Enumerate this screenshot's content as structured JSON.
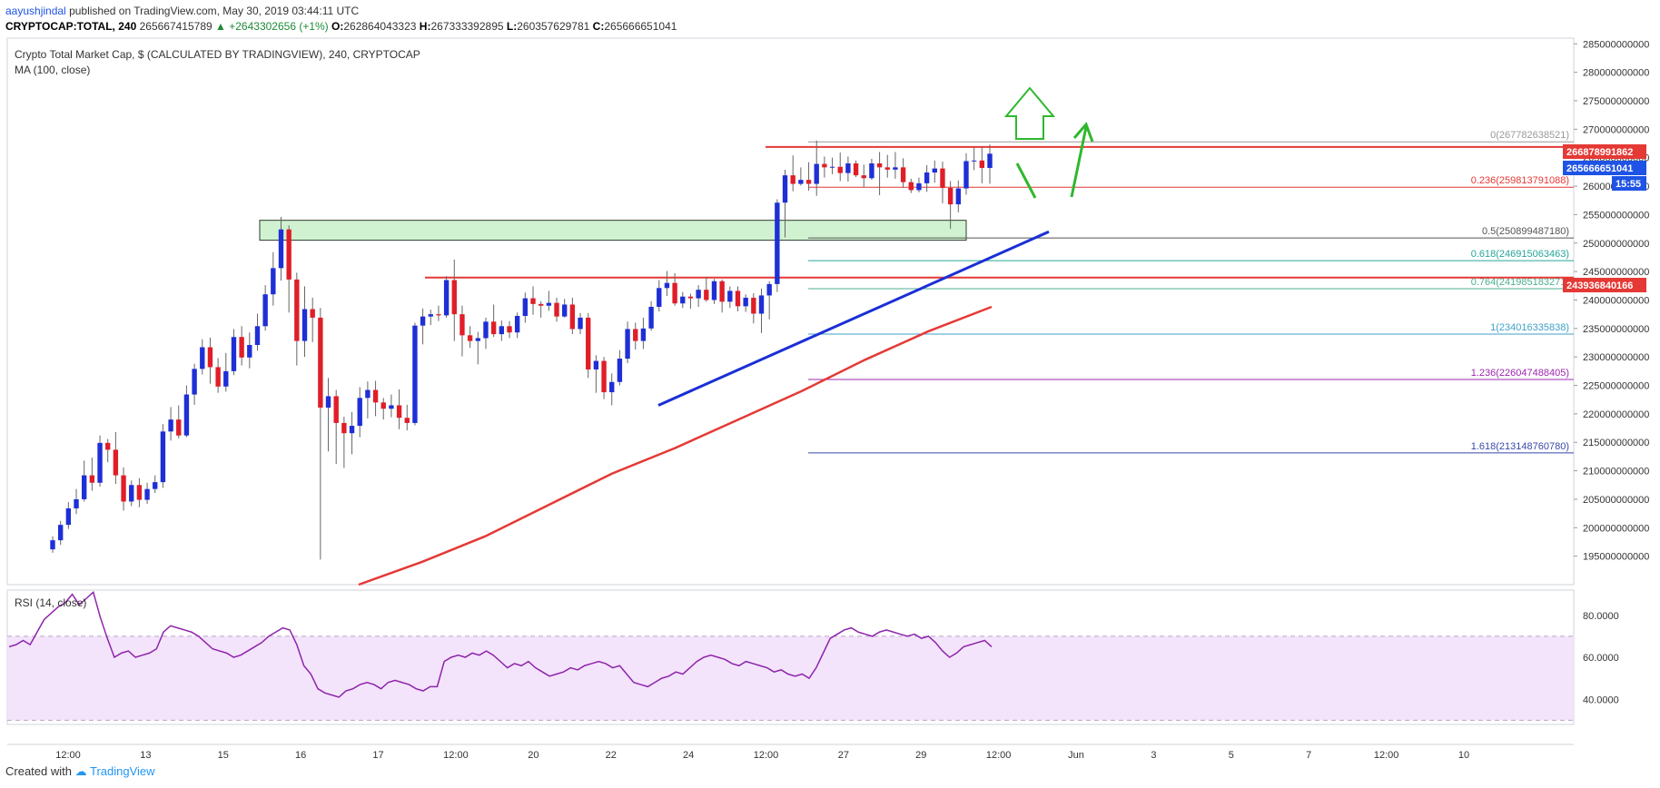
{
  "header": {
    "author": "aayushjindal",
    "published": "published on TradingView.com, May 30, 2019 03:44:11 UTC",
    "symbol": "CRYPTOCAP:TOTAL, 240",
    "last": "265667415789",
    "change": "▲ +2643302656 (+1%)",
    "o_label": "O:",
    "o": "262864043323",
    "h_label": "H:",
    "h": "267333392895",
    "l_label": "L:",
    "l": "260357629781",
    "c_label": "C:",
    "c": "265666651041"
  },
  "chart_data": [
    {
      "type": "candlestick",
      "title": "Crypto Total Market Cap, $ (CALCULATED BY TRADINGVIEW), 240, CRYPTOCAP",
      "indicator": "MA (100, close)",
      "ylim": [
        190000000000,
        286000000000
      ],
      "y_ticks": [
        "285000000000",
        "280000000000",
        "275000000000",
        "270000000000",
        "265000000000",
        "260000000000",
        "255000000000",
        "250000000000",
        "245000000000",
        "240000000000",
        "235000000000",
        "230000000000",
        "225000000000",
        "220000000000",
        "215000000000",
        "210000000000",
        "205000000000",
        "200000000000",
        "195000000000"
      ],
      "x_ticks": [
        "12:00",
        "13",
        "15",
        "16",
        "17",
        "12:00",
        "20",
        "22",
        "24",
        "12:00",
        "27",
        "29",
        "12:00",
        "Jun",
        "3",
        "5",
        "7",
        "12:00",
        "10"
      ],
      "price_labels": [
        {
          "text": "266878991862",
          "color": "#e53935"
        },
        {
          "text": "265666651041",
          "color": "#1e53e5"
        },
        {
          "text": "15:55",
          "color": "#1e53e5"
        },
        {
          "text": "243936840166",
          "color": "#e53935"
        }
      ],
      "fib_levels": [
        {
          "label": "0(267782638521)",
          "value": 267782638521,
          "color": "#999999"
        },
        {
          "label": "0.236(259813791088)",
          "value": 259813791088,
          "color": "#e53935"
        },
        {
          "label": "0.5(250899487180)",
          "value": 250899487180,
          "color": "#555555"
        },
        {
          "label": "0.618(246915063463)",
          "value": 246915063463,
          "color": "#26a69a"
        },
        {
          "label": "0.764(241985183271)",
          "value": 241985183271,
          "color": "#4caf8f"
        },
        {
          "label": "1(234016335838)",
          "value": 234016335838,
          "color": "#3fa1c9"
        },
        {
          "label": "1.236(226047488405)",
          "value": 226047488405,
          "color": "#9c27b0"
        },
        {
          "label": "1.618(213148760780)",
          "value": 213148760780,
          "color": "#3949ab"
        }
      ],
      "horizontal_lines": [
        266878991862,
        243936840166
      ],
      "support_zone": [
        250500000000,
        254000000000
      ],
      "trendline": {
        "from": [
          0.0,
          221500000000
        ],
        "to": [
          1.0,
          252000000000
        ]
      },
      "ma100": [
        [
          0,
          190000000000
        ],
        [
          0.1,
          194000000000
        ],
        [
          0.2,
          198500000000
        ],
        [
          0.3,
          204000000000
        ],
        [
          0.4,
          209500000000
        ],
        [
          0.5,
          214000000000
        ],
        [
          0.6,
          219000000000
        ],
        [
          0.7,
          224000000000
        ],
        [
          0.8,
          229500000000
        ],
        [
          0.9,
          234500000000
        ],
        [
          1.0,
          238800000000
        ]
      ],
      "candles": [
        [
          196200000000,
          197800000000,
          195600000000,
          198500000000
        ],
        [
          197800000000,
          200500000000,
          197000000000,
          201200000000
        ],
        [
          200500000000,
          203400000000,
          199800000000,
          204500000000
        ],
        [
          203400000000,
          205000000000,
          202400000000,
          206800000000
        ],
        [
          205000000000,
          209200000000,
          204600000000,
          211800000000
        ],
        [
          209200000000,
          207900000000,
          206500000000,
          212300000000
        ],
        [
          207900000000,
          214900000000,
          207200000000,
          216200000000
        ],
        [
          214900000000,
          213700000000,
          211500000000,
          215600000000
        ],
        [
          213700000000,
          209200000000,
          207700000000,
          216800000000
        ],
        [
          209200000000,
          204600000000,
          203000000000,
          210600000000
        ],
        [
          204600000000,
          207500000000,
          203800000000,
          208300000000
        ],
        [
          207500000000,
          204900000000,
          203600000000,
          208700000000
        ],
        [
          204900000000,
          206800000000,
          204200000000,
          207900000000
        ],
        [
          206800000000,
          208000000000,
          206100000000,
          209200000000
        ],
        [
          208000000000,
          216900000000,
          207000000000,
          218200000000
        ],
        [
          216900000000,
          219000000000,
          215300000000,
          221200000000
        ],
        [
          219000000000,
          216200000000,
          215700000000,
          221500000000
        ],
        [
          216200000000,
          223400000000,
          215900000000,
          225000000000
        ],
        [
          223400000000,
          227900000000,
          221600000000,
          228800000000
        ],
        [
          227900000000,
          231700000000,
          226900000000,
          233100000000
        ],
        [
          231700000000,
          228200000000,
          225300000000,
          233400000000
        ],
        [
          228200000000,
          224800000000,
          223700000000,
          229800000000
        ],
        [
          224800000000,
          227500000000,
          223900000000,
          230700000000
        ],
        [
          227500000000,
          233500000000,
          226800000000,
          234900000000
        ],
        [
          233500000000,
          229900000000,
          228500000000,
          235400000000
        ],
        [
          229900000000,
          232100000000,
          228000000000,
          234300000000
        ],
        [
          232100000000,
          235400000000,
          231100000000,
          237600000000
        ],
        [
          235400000000,
          241000000000,
          234600000000,
          242600000000
        ],
        [
          241000000000,
          245600000000,
          239000000000,
          248400000000
        ],
        [
          245600000000,
          252400000000,
          243400000000,
          254600000000
        ],
        [
          252400000000,
          243600000000,
          237800000000,
          253100000000
        ],
        [
          243600000000,
          232800000000,
          228500000000,
          244800000000
        ],
        [
          232800000000,
          238400000000,
          230000000000,
          242400000000
        ],
        [
          238400000000,
          236900000000,
          232600000000,
          240400000000
        ],
        [
          236900000000,
          221100000000,
          194400000000,
          238600000000
        ],
        [
          221100000000,
          223100000000,
          213400000000,
          226300000000
        ],
        [
          223100000000,
          218400000000,
          211200000000,
          224200000000
        ],
        [
          218400000000,
          216600000000,
          210500000000,
          219500000000
        ],
        [
          216600000000,
          217900000000,
          212900000000,
          220300000000
        ],
        [
          217900000000,
          222800000000,
          215900000000,
          224700000000
        ],
        [
          222800000000,
          224200000000,
          219200000000,
          225700000000
        ],
        [
          224200000000,
          222000000000,
          219600000000,
          225800000000
        ],
        [
          222000000000,
          220900000000,
          219000000000,
          222800000000
        ],
        [
          220900000000,
          221500000000,
          219400000000,
          223400000000
        ],
        [
          221500000000,
          219300000000,
          217300000000,
          224300000000
        ],
        [
          219300000000,
          218400000000,
          217100000000,
          221600000000
        ],
        [
          218400000000,
          235500000000,
          218000000000,
          236000000000
        ],
        [
          235500000000,
          237100000000,
          232200000000,
          238500000000
        ],
        [
          237100000000,
          237500000000,
          235600000000,
          238300000000
        ],
        [
          237500000000,
          237300000000,
          236300000000,
          239000000000
        ],
        [
          237300000000,
          243500000000,
          236900000000,
          244200000000
        ],
        [
          243500000000,
          237500000000,
          232800000000,
          247100000000
        ],
        [
          237500000000,
          233800000000,
          230100000000,
          239000000000
        ],
        [
          233800000000,
          232800000000,
          231600000000,
          235400000000
        ],
        [
          232800000000,
          233300000000,
          228700000000,
          234400000000
        ],
        [
          233300000000,
          236200000000,
          231400000000,
          236900000000
        ],
        [
          236200000000,
          234000000000,
          233500000000,
          239200000000
        ],
        [
          234000000000,
          235400000000,
          232800000000,
          236400000000
        ],
        [
          235400000000,
          234300000000,
          233300000000,
          236300000000
        ],
        [
          234300000000,
          237200000000,
          233300000000,
          237800000000
        ],
        [
          237200000000,
          240300000000,
          236000000000,
          241300000000
        ],
        [
          240300000000,
          239300000000,
          237400000000,
          242400000000
        ],
        [
          239300000000,
          239000000000,
          236900000000,
          239800000000
        ],
        [
          239000000000,
          239500000000,
          238100000000,
          241600000000
        ],
        [
          239500000000,
          237100000000,
          236200000000,
          240400000000
        ],
        [
          237100000000,
          239200000000,
          236900000000,
          240200000000
        ],
        [
          239200000000,
          234900000000,
          234000000000,
          240400000000
        ],
        [
          234900000000,
          236900000000,
          234000000000,
          237700000000
        ],
        [
          236900000000,
          227800000000,
          226300000000,
          237700000000
        ],
        [
          227800000000,
          229300000000,
          223700000000,
          230300000000
        ],
        [
          229300000000,
          223800000000,
          222600000000,
          230000000000
        ],
        [
          223800000000,
          225600000000,
          221500000000,
          227100000000
        ],
        [
          225600000000,
          229700000000,
          225000000000,
          231200000000
        ],
        [
          229700000000,
          234900000000,
          228900000000,
          236200000000
        ],
        [
          234900000000,
          232800000000,
          231300000000,
          236000000000
        ],
        [
          232800000000,
          235000000000,
          231400000000,
          236900000000
        ],
        [
          235000000000,
          238800000000,
          234600000000,
          239800000000
        ],
        [
          238800000000,
          242100000000,
          238000000000,
          243500000000
        ],
        [
          242100000000,
          243000000000,
          240700000000,
          245100000000
        ],
        [
          243000000000,
          239400000000,
          239000000000,
          244700000000
        ],
        [
          239400000000,
          240600000000,
          238600000000,
          241400000000
        ],
        [
          240600000000,
          240300000000,
          238500000000,
          241100000000
        ],
        [
          240300000000,
          241800000000,
          238800000000,
          242600000000
        ],
        [
          241800000000,
          240000000000,
          239700000000,
          244100000000
        ],
        [
          240000000000,
          243300000000,
          239300000000,
          243700000000
        ],
        [
          243300000000,
          239700000000,
          237800000000,
          243600000000
        ],
        [
          239700000000,
          241600000000,
          238600000000,
          242400000000
        ],
        [
          241600000000,
          238900000000,
          238000000000,
          242400000000
        ],
        [
          238900000000,
          240400000000,
          237900000000,
          241000000000
        ],
        [
          240400000000,
          237600000000,
          235900000000,
          241200000000
        ],
        [
          237600000000,
          240800000000,
          234200000000,
          242000000000
        ],
        [
          240800000000,
          242800000000,
          236600000000,
          243300000000
        ],
        [
          242800000000,
          257100000000,
          241400000000,
          257700000000
        ],
        [
          257100000000,
          261900000000,
          251000000000,
          262900000000
        ],
        [
          261900000000,
          260400000000,
          259100000000,
          265400000000
        ],
        [
          260400000000,
          261100000000,
          260100000000,
          263300000000
        ],
        [
          261100000000,
          260400000000,
          259200000000,
          264200000000
        ],
        [
          260400000000,
          263900000000,
          258300000000,
          268000000000
        ],
        [
          263900000000,
          263300000000,
          261500000000,
          265200000000
        ],
        [
          263300000000,
          263400000000,
          262100000000,
          265000000000
        ],
        [
          263400000000,
          262300000000,
          260900000000,
          265900000000
        ],
        [
          262300000000,
          264000000000,
          260800000000,
          265200000000
        ],
        [
          264000000000,
          261900000000,
          261600000000,
          264500000000
        ],
        [
          261900000000,
          261400000000,
          259800000000,
          263800000000
        ],
        [
          261400000000,
          264000000000,
          261100000000,
          264800000000
        ],
        [
          264000000000,
          263300000000,
          258400000000,
          266000000000
        ],
        [
          263300000000,
          262900000000,
          261500000000,
          265500000000
        ],
        [
          262900000000,
          263300000000,
          261300000000,
          266000000000
        ],
        [
          263300000000,
          260700000000,
          259700000000,
          264900000000
        ],
        [
          260700000000,
          259300000000,
          258800000000,
          261300000000
        ],
        [
          259300000000,
          260500000000,
          258900000000,
          261500000000
        ],
        [
          260500000000,
          262400000000,
          259000000000,
          263700000000
        ],
        [
          262400000000,
          263100000000,
          260600000000,
          264500000000
        ],
        [
          263100000000,
          259700000000,
          257000000000,
          264300000000
        ],
        [
          259700000000,
          256800000000,
          252500000000,
          260900000000
        ],
        [
          256800000000,
          259600000000,
          255400000000,
          261000000000
        ],
        [
          259600000000,
          264400000000,
          258500000000,
          265800000000
        ],
        [
          264400000000,
          264500000000,
          262800000000,
          266800000000
        ],
        [
          264500000000,
          263200000000,
          260500000000,
          267000000000
        ],
        [
          263200000000,
          265700000000,
          260400000000,
          267300000000
        ]
      ]
    },
    {
      "type": "line",
      "title": "RSI (14, close)",
      "ylim": [
        28,
        92
      ],
      "y_ticks": [
        "80.0000",
        "60.0000",
        "40.0000"
      ],
      "bands": [
        70,
        30
      ],
      "values": [
        65,
        66,
        68,
        66,
        72,
        78,
        81,
        84,
        86,
        90,
        85,
        88,
        91,
        79,
        69,
        60,
        62,
        63,
        60,
        61,
        62,
        64,
        72,
        75,
        74,
        73,
        72,
        70,
        67,
        64,
        63,
        62,
        60,
        61,
        63,
        65,
        67,
        70,
        72,
        74,
        73,
        66,
        56,
        52,
        45,
        43,
        42,
        41,
        44,
        45,
        47,
        48,
        47,
        45,
        48,
        49,
        48,
        47,
        45,
        44,
        46,
        46,
        58,
        60,
        61,
        60,
        62,
        61,
        63,
        61,
        58,
        55,
        57,
        56,
        58,
        55,
        53,
        51,
        52,
        53,
        55,
        54,
        56,
        57,
        58,
        57,
        55,
        56,
        52,
        48,
        47,
        46,
        48,
        50,
        51,
        53,
        52,
        55,
        58,
        60,
        61,
        60,
        59,
        57,
        56,
        58,
        57,
        56,
        55,
        53,
        54,
        52,
        51,
        52,
        50,
        55,
        62,
        69,
        71,
        73,
        74,
        72,
        71,
        70,
        72,
        73,
        72,
        71,
        70,
        71,
        69,
        70,
        67,
        63,
        60,
        62,
        65,
        66,
        67,
        68,
        65
      ]
    }
  ],
  "footer": {
    "created": "Created with",
    "brand": "TradingView"
  }
}
